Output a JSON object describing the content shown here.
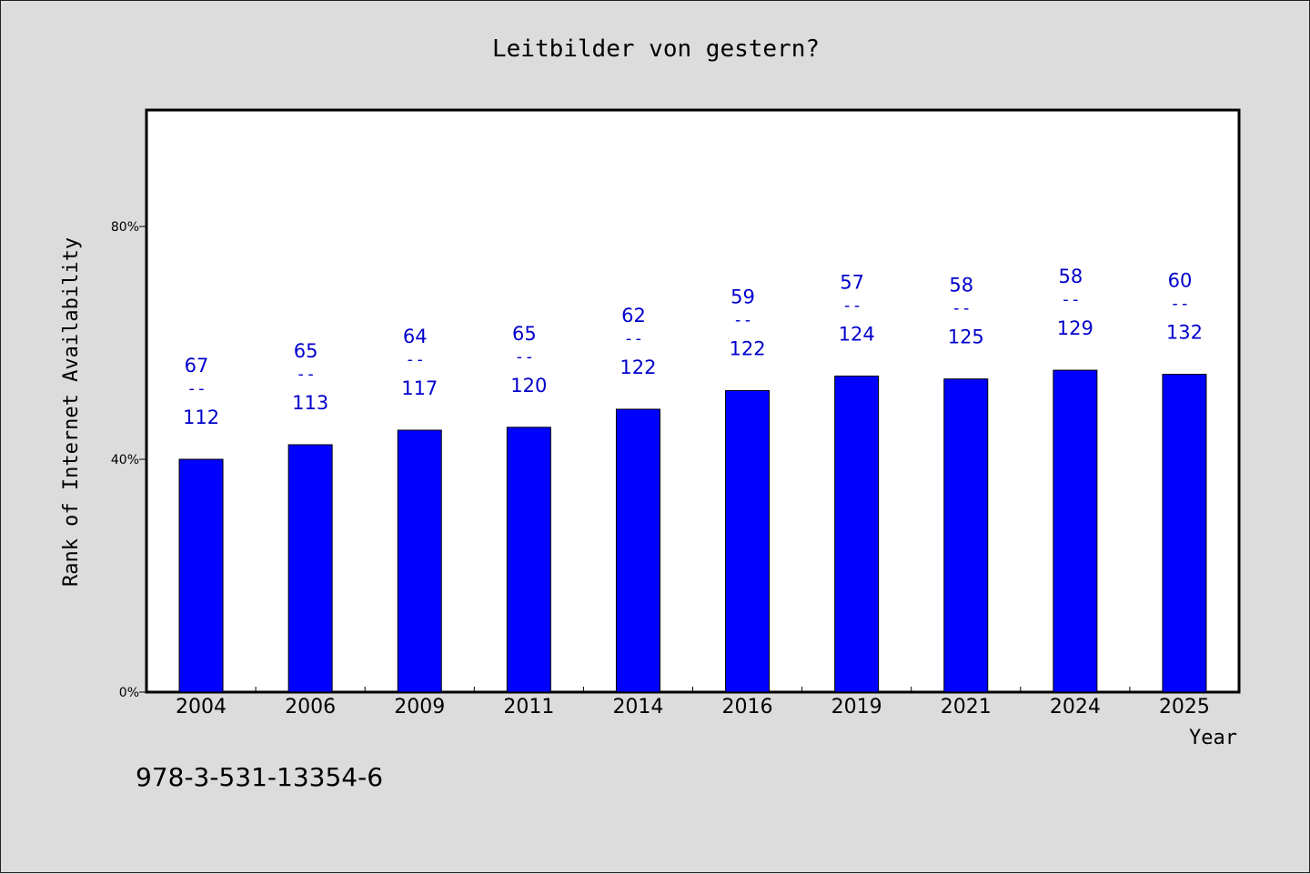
{
  "chart_data": {
    "type": "bar",
    "title": "Leitbilder von gestern?",
    "xlabel": "Year",
    "ylabel": "Rank of Internet Availability",
    "isbn": "978-3-531-13354-6",
    "categories": [
      "2004",
      "2006",
      "2009",
      "2011",
      "2014",
      "2016",
      "2019",
      "2021",
      "2024",
      "2025"
    ],
    "values": [
      40.0,
      42.5,
      45.0,
      45.5,
      48.6,
      51.8,
      54.3,
      53.8,
      55.3,
      54.6
    ],
    "label_top": [
      "67",
      "65",
      "64",
      "65",
      "62",
      "59",
      "57",
      "58",
      "58",
      "60"
    ],
    "label_mid": [
      "--",
      "--",
      "--",
      "--",
      "--",
      "--",
      "--",
      "--",
      "--",
      "--"
    ],
    "label_bottom": [
      "112",
      "113",
      "117",
      "120",
      "122",
      "122",
      "124",
      "125",
      "129",
      "132"
    ],
    "yticks": [
      0,
      40,
      80
    ],
    "ytick_labels": [
      "0%",
      "40%",
      "80%"
    ],
    "ylim": [
      0,
      100
    ],
    "grid": false,
    "bar_color": "#0000ff",
    "label_color": "#0000cc"
  }
}
